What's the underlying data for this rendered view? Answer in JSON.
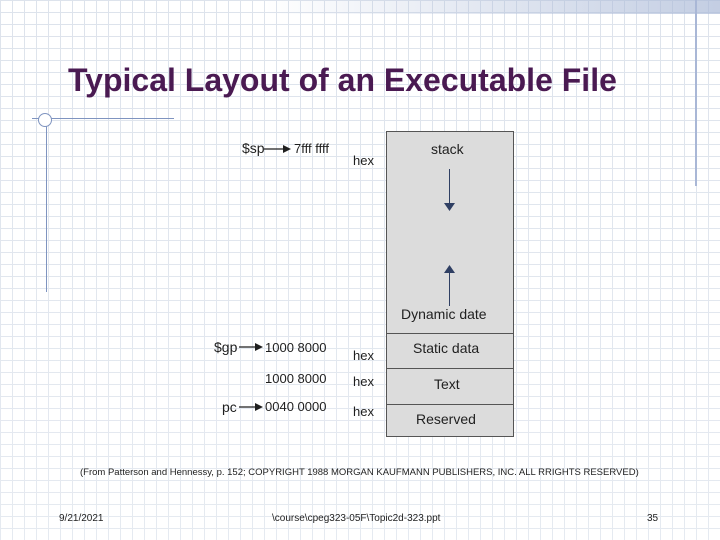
{
  "slide": {
    "title": "Typical Layout of an Executable File"
  },
  "registers": {
    "sp": "$sp",
    "gp": "$gp",
    "pc": "pc"
  },
  "addresses": {
    "sp_addr": "7fff  ffff",
    "gp_addr": "1000  8000",
    "text_addr": "1000  8000",
    "pc_addr": "0040  0000",
    "hex1": "hex",
    "hex2": "hex",
    "hex3": "hex",
    "hex4": "hex"
  },
  "segments": {
    "stack": "stack",
    "dynamic": "Dynamic date",
    "static": "Static data",
    "text": "Text",
    "reserved": "Reserved"
  },
  "citation": "(From Patterson and Hennessy, p. 152; COPYRIGHT 1988 MORGAN KAUFMANN PUBLISHERS, INC. ALL RRIGHTS RESERVED)",
  "footer": {
    "date": "9/21/2021",
    "path": "\\course\\cpeg323-05F\\Topic2d-323.ppt",
    "page": "35"
  }
}
